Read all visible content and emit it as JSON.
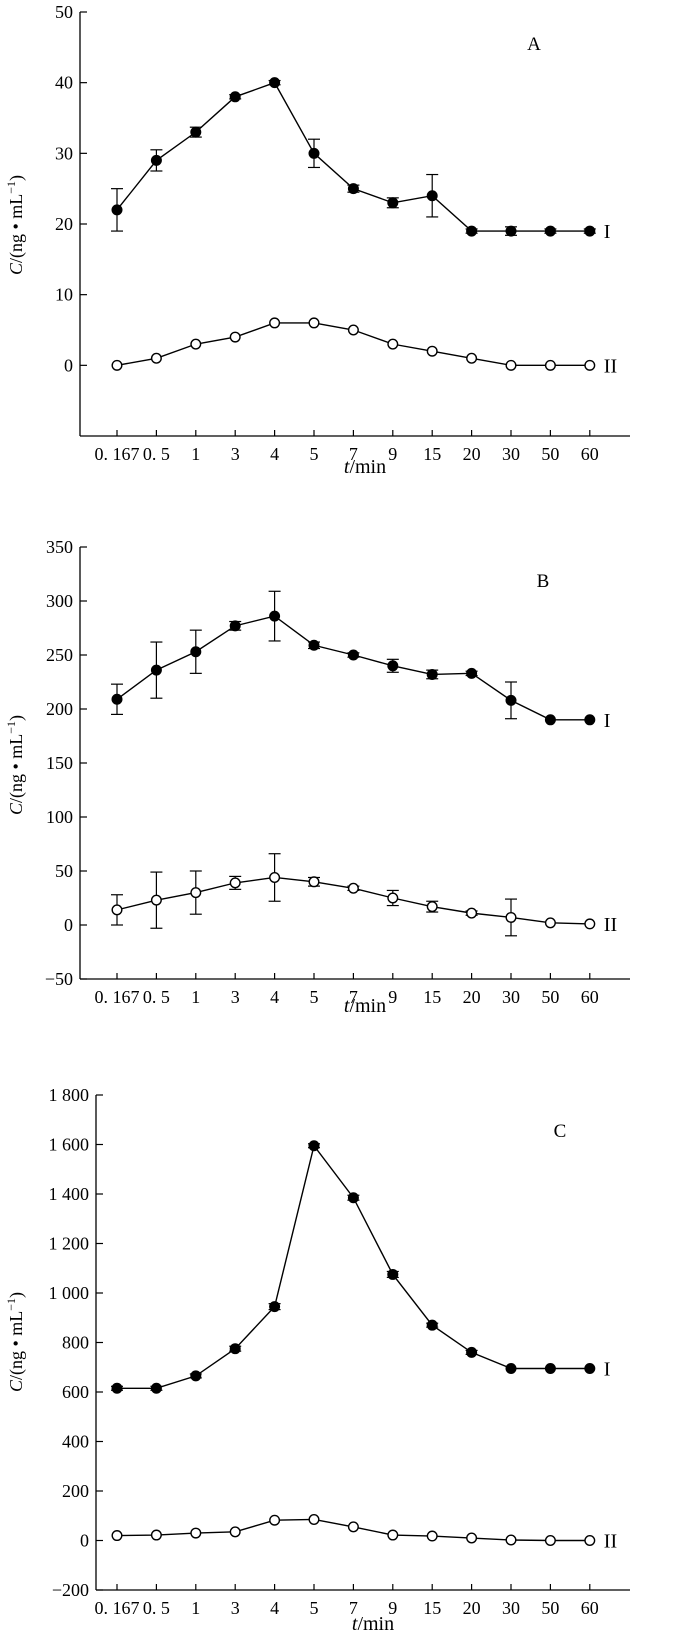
{
  "figure": {
    "x_axis_label_italic": "t",
    "x_axis_label_rest": "/min",
    "y_axis_label_italic": "C",
    "y_axis_label_rest": "/(ng • mL",
    "y_axis_label_sup": "−1",
    "y_axis_label_close": ")"
  },
  "chart_data": [
    {
      "type": "line",
      "panel_label": "A",
      "categories": [
        "0. 167",
        "0. 5",
        "1",
        "3",
        "4",
        "5",
        "7",
        "9",
        "15",
        "20",
        "30",
        "50",
        "60"
      ],
      "xlabel": "t/min",
      "ylabel": "C/(ng • mL−1)",
      "ylim": [
        -10,
        50
      ],
      "yticks": [
        0,
        10,
        20,
        30,
        40,
        50
      ],
      "ytick_labels": [
        "0",
        "10",
        "20",
        "30",
        "40",
        "50"
      ],
      "series": [
        {
          "name": "I",
          "marker": "filled",
          "values": [
            22,
            29,
            33,
            38,
            40,
            30,
            25,
            23,
            24,
            19,
            19,
            19,
            19
          ],
          "errors": [
            3,
            1.5,
            0.7,
            0.3,
            0.3,
            2,
            0.5,
            0.7,
            3,
            0.3,
            0.6,
            0.3,
            0.3
          ]
        },
        {
          "name": "II",
          "marker": "open",
          "values": [
            0,
            1,
            3,
            4,
            6,
            6,
            5,
            3,
            2,
            1,
            0,
            0,
            0
          ],
          "errors": [
            0,
            0,
            0,
            0,
            0,
            0,
            0,
            0,
            0,
            0,
            0,
            0,
            0
          ]
        }
      ]
    },
    {
      "type": "line",
      "panel_label": "B",
      "categories": [
        "0. 167",
        "0. 5",
        "1",
        "3",
        "4",
        "5",
        "7",
        "9",
        "15",
        "20",
        "30",
        "50",
        "60"
      ],
      "xlabel": "t/min",
      "ylabel": "C/(ng • mL−1)",
      "ylim": [
        -50,
        350
      ],
      "yticks": [
        -50,
        0,
        50,
        100,
        150,
        200,
        250,
        300,
        350
      ],
      "ytick_labels": [
        "−50",
        "0",
        "50",
        "100",
        "150",
        "200",
        "250",
        "300",
        "350"
      ],
      "series": [
        {
          "name": "I",
          "marker": "filled",
          "values": [
            209,
            236,
            253,
            277,
            286,
            259,
            250,
            240,
            232,
            233,
            208,
            190,
            190
          ],
          "errors": [
            14,
            26,
            20,
            4,
            23,
            3,
            2,
            6,
            4,
            2,
            17,
            1,
            1
          ]
        },
        {
          "name": "II",
          "marker": "open",
          "values": [
            14,
            23,
            30,
            39,
            44,
            40,
            34,
            25,
            17,
            11,
            7,
            2,
            1
          ],
          "errors": [
            14,
            26,
            20,
            6,
            22,
            4,
            2,
            7,
            5,
            2,
            17,
            1,
            1
          ]
        }
      ]
    },
    {
      "type": "line",
      "panel_label": "C",
      "categories": [
        "0. 167",
        "0. 5",
        "1",
        "3",
        "4",
        "5",
        "7",
        "9",
        "15",
        "20",
        "30",
        "50",
        "60"
      ],
      "xlabel": "t/min",
      "ylabel": "C/(ng • mL−1)",
      "ylim": [
        -200,
        1800
      ],
      "yticks": [
        -200,
        0,
        200,
        400,
        600,
        800,
        1000,
        1200,
        1400,
        1600,
        1800
      ],
      "ytick_labels": [
        "−200",
        "0",
        "200",
        "400",
        "600",
        "800",
        "1 000",
        "1 200",
        "1 400",
        "1 600",
        "1 800"
      ],
      "series": [
        {
          "name": "I",
          "marker": "filled",
          "values": [
            615,
            615,
            665,
            775,
            945,
            1595,
            1385,
            1075,
            870,
            760,
            695,
            695,
            695
          ],
          "errors": [
            8,
            8,
            8,
            10,
            12,
            8,
            10,
            12,
            8,
            8,
            6,
            6,
            6
          ]
        },
        {
          "name": "II",
          "marker": "open",
          "values": [
            20,
            22,
            30,
            35,
            82,
            85,
            55,
            22,
            18,
            10,
            2,
            0,
            0
          ],
          "errors": [
            4,
            4,
            4,
            4,
            6,
            6,
            6,
            4,
            4,
            4,
            3,
            3,
            3
          ]
        }
      ]
    }
  ]
}
